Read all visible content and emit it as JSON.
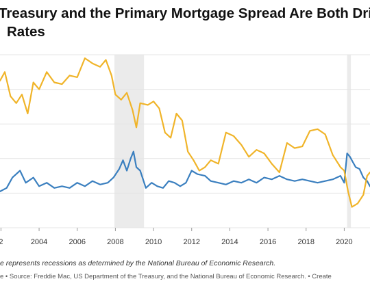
{
  "header": {
    "title_line1": "Treasury and the Primary Mortgage Spread Are Both Driv",
    "title_line2": "Rates"
  },
  "footer": {
    "note": "e represents recessions as determined by the National Bureau of Economic Research.",
    "source": "e • Source: Freddie Mac, US Department of the Treasury, and the National Bureau of Economic Research. • Create"
  },
  "colors": {
    "spread_line": "#3a7fbf",
    "treasury_line": "#f0b429",
    "recession_band": "#ebebeb",
    "gridline": "#e4e4e4"
  },
  "chart_data": {
    "type": "line",
    "title": "Treasury and the Primary Mortgage Spread Are Both Driv",
    "subtitle": "Rates",
    "xlabel": "",
    "ylabel": "",
    "x_ticks": [
      "2",
      "2004",
      "2006",
      "2008",
      "2010",
      "2012",
      "2014",
      "2016",
      "2018",
      "2020"
    ],
    "xlim": [
      2001.95,
      2021.35
    ],
    "ylim": [
      0,
      5
    ],
    "grid": true,
    "recessions": [
      [
        2007.95,
        2009.5
      ],
      [
        2020.15,
        2020.35
      ]
    ],
    "series": [
      {
        "color": "#3a7fbf",
        "x": [
          2001.95,
          2002.3,
          2002.6,
          2003.0,
          2003.3,
          2003.7,
          2004.0,
          2004.4,
          2004.8,
          2005.2,
          2005.6,
          2006.0,
          2006.4,
          2006.8,
          2007.2,
          2007.6,
          2007.9,
          2008.2,
          2008.4,
          2008.6,
          2008.8,
          2008.95,
          2009.1,
          2009.3,
          2009.6,
          2009.9,
          2010.2,
          2010.5,
          2010.8,
          2011.1,
          2011.4,
          2011.7,
          2012.0,
          2012.3,
          2012.7,
          2013.0,
          2013.4,
          2013.8,
          2014.2,
          2014.6,
          2015.0,
          2015.4,
          2015.8,
          2016.2,
          2016.6,
          2017.0,
          2017.4,
          2017.8,
          2018.2,
          2018.6,
          2019.0,
          2019.4,
          2019.8,
          2020.0,
          2020.15,
          2020.3,
          2020.45,
          2020.6,
          2020.8,
          2021.0,
          2021.2,
          2021.35
        ],
        "values": [
          1.05,
          1.15,
          1.45,
          1.65,
          1.3,
          1.45,
          1.2,
          1.3,
          1.15,
          1.2,
          1.15,
          1.3,
          1.2,
          1.35,
          1.25,
          1.3,
          1.45,
          1.7,
          1.95,
          1.65,
          2.0,
          2.2,
          1.75,
          1.65,
          1.15,
          1.3,
          1.2,
          1.15,
          1.35,
          1.3,
          1.2,
          1.3,
          1.65,
          1.55,
          1.5,
          1.35,
          1.3,
          1.25,
          1.35,
          1.3,
          1.4,
          1.3,
          1.45,
          1.4,
          1.5,
          1.4,
          1.35,
          1.4,
          1.35,
          1.3,
          1.35,
          1.4,
          1.5,
          1.3,
          2.15,
          2.05,
          1.9,
          1.75,
          1.7,
          1.45,
          1.35,
          1.2
        ]
      },
      {
        "color": "#f0b429",
        "x": [
          2001.95,
          2002.2,
          2002.5,
          2002.8,
          2003.1,
          2003.4,
          2003.7,
          2004.0,
          2004.4,
          2004.8,
          2005.2,
          2005.6,
          2006.0,
          2006.4,
          2006.8,
          2007.2,
          2007.5,
          2007.8,
          2008.0,
          2008.3,
          2008.6,
          2008.9,
          2009.1,
          2009.3,
          2009.7,
          2010.0,
          2010.3,
          2010.6,
          2010.9,
          2011.2,
          2011.5,
          2011.8,
          2012.1,
          2012.4,
          2012.7,
          2013.0,
          2013.4,
          2013.8,
          2014.2,
          2014.6,
          2015.0,
          2015.4,
          2015.8,
          2016.2,
          2016.6,
          2017.0,
          2017.4,
          2017.8,
          2018.2,
          2018.6,
          2019.0,
          2019.4,
          2019.8,
          2020.0,
          2020.2,
          2020.4,
          2020.7,
          2021.0,
          2021.2,
          2021.35
        ],
        "values": [
          4.25,
          4.5,
          3.8,
          3.6,
          3.85,
          3.3,
          4.2,
          4.0,
          4.5,
          4.2,
          4.15,
          4.4,
          4.35,
          4.9,
          4.75,
          4.65,
          4.85,
          4.4,
          3.85,
          3.7,
          3.9,
          3.4,
          2.9,
          3.6,
          3.55,
          3.65,
          3.45,
          2.75,
          2.6,
          3.3,
          3.1,
          2.2,
          1.95,
          1.65,
          1.75,
          1.95,
          1.85,
          2.75,
          2.65,
          2.4,
          2.05,
          2.25,
          2.15,
          1.85,
          1.6,
          2.45,
          2.3,
          2.35,
          2.8,
          2.85,
          2.7,
          2.1,
          1.75,
          1.65,
          1.05,
          0.6,
          0.7,
          0.95,
          1.5,
          1.6
        ]
      }
    ]
  }
}
